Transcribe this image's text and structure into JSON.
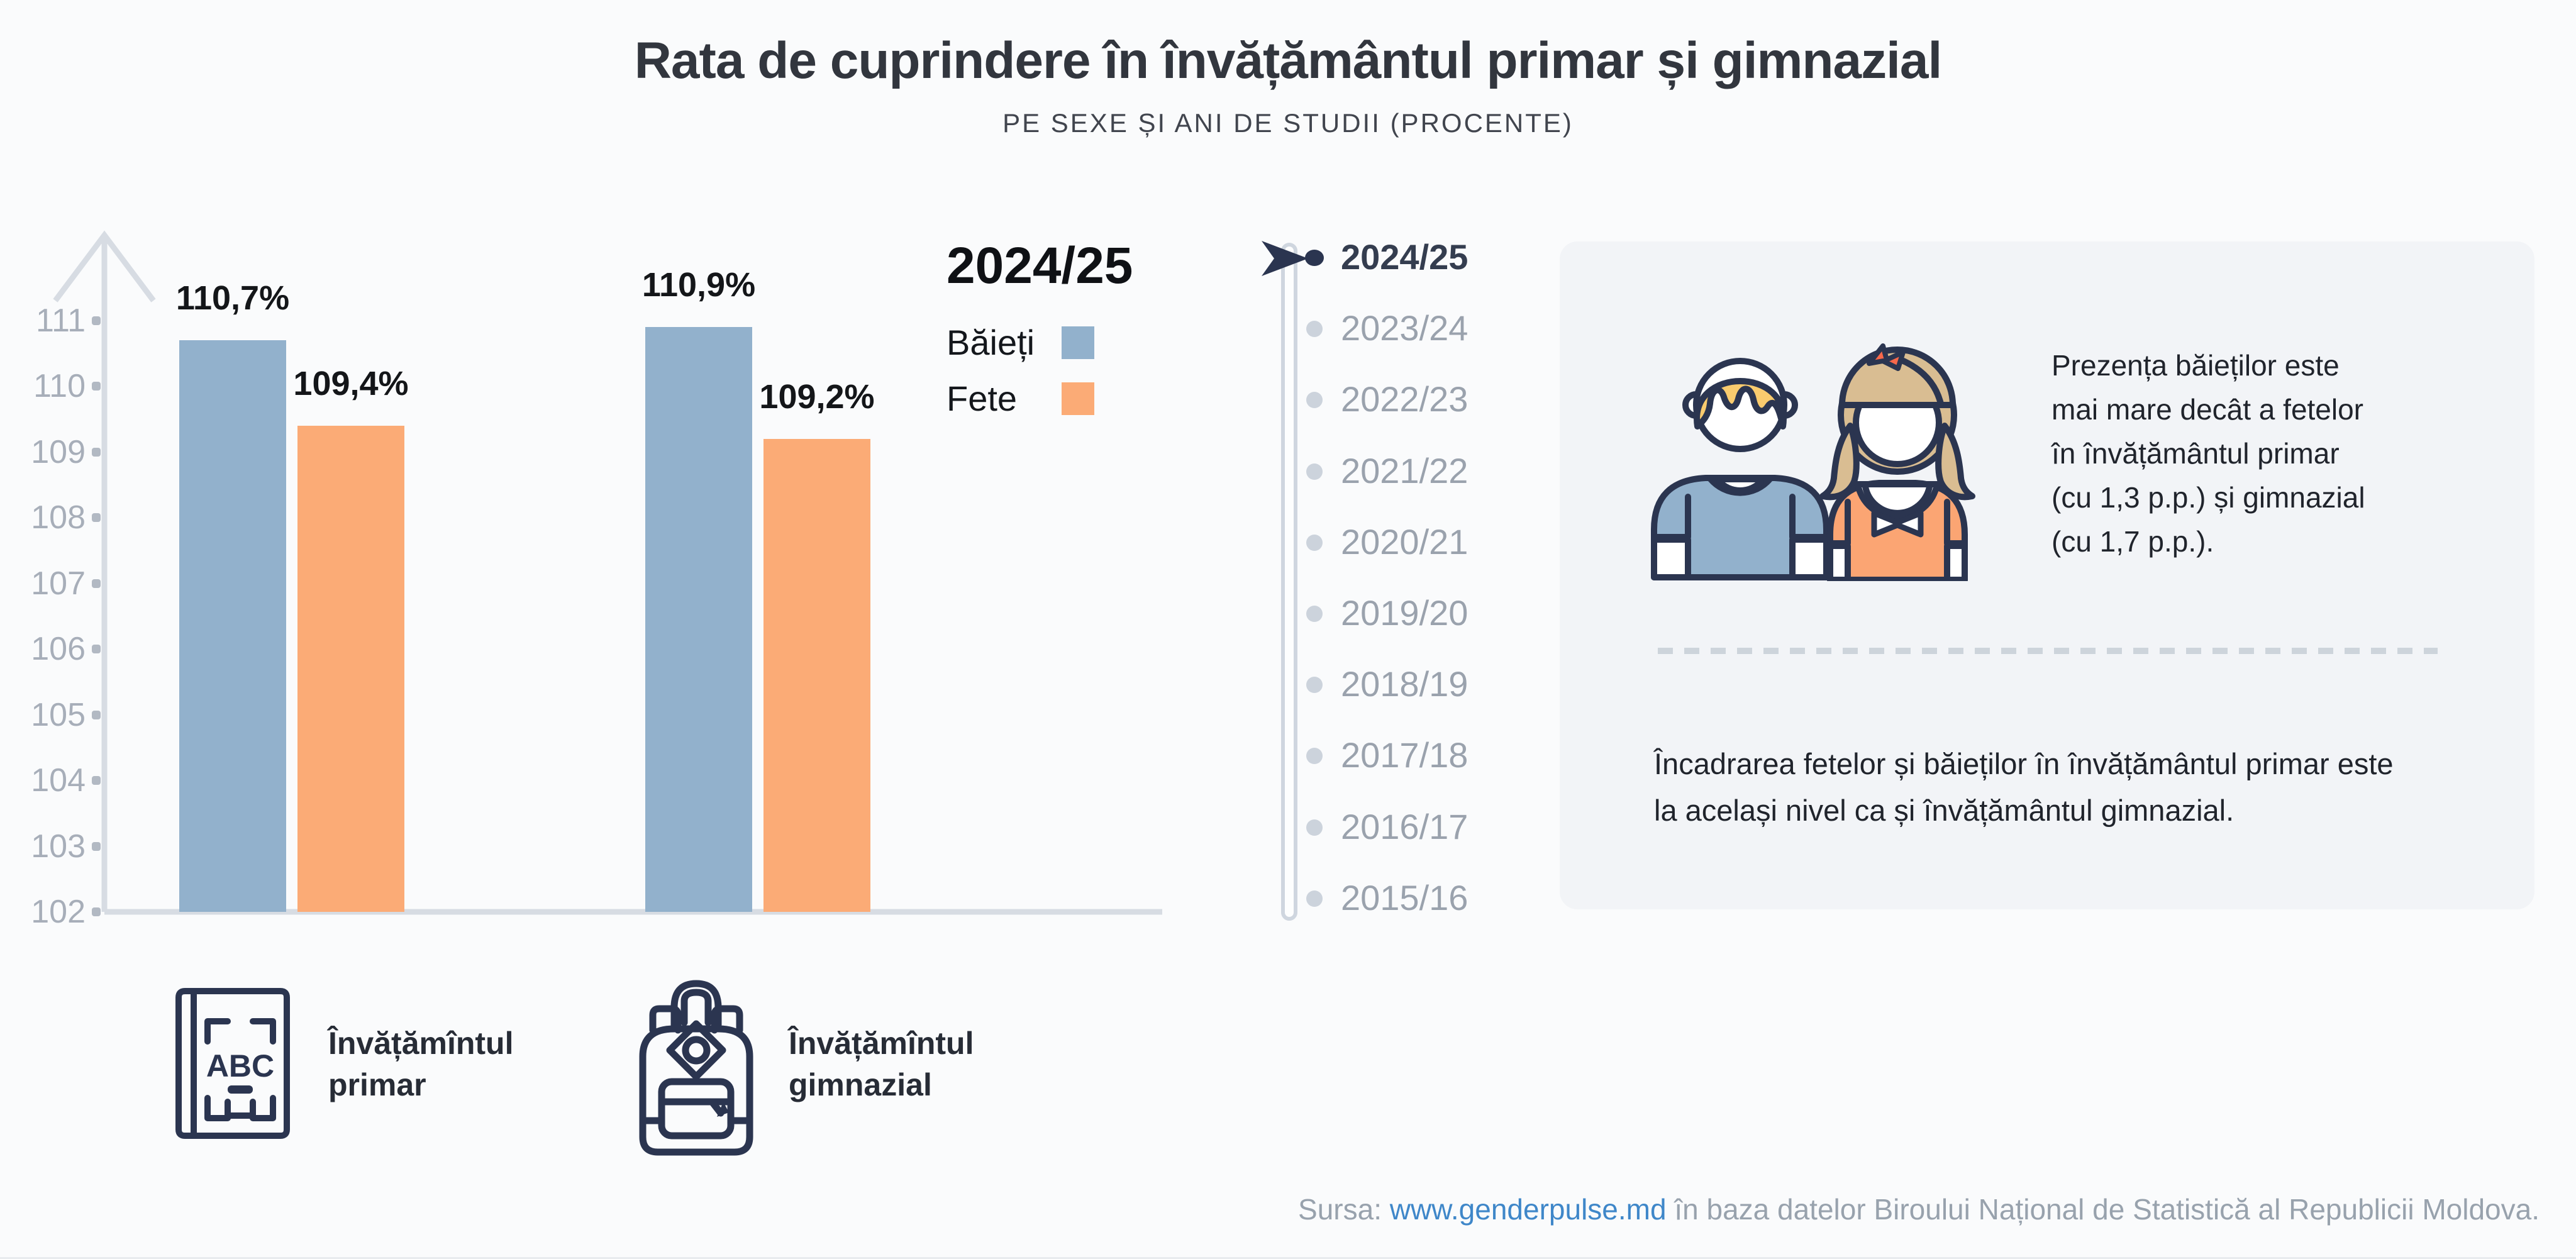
{
  "header": {
    "title": "Rata de cuprindere în învățământul primar și gimnazial",
    "subtitle": "PE SEXE ȘI ANI DE STUDII (PROCENTE)"
  },
  "chart_data": {
    "type": "bar",
    "title": "Rata de cuprindere în învățământul primar și gimnazial",
    "subtitle": "PE SEXE ȘI ANI DE STUDII (PROCENTE)",
    "xlabel": "",
    "ylabel": "",
    "ylim": [
      102,
      111
    ],
    "yticks": [
      111,
      110,
      109,
      108,
      107,
      106,
      105,
      104,
      103,
      102
    ],
    "grid": false,
    "legend_position": "top-right",
    "categories": [
      "Învățămîntul primar",
      "Învățămîntul gimnazial"
    ],
    "series": [
      {
        "name": "Băieți",
        "color": "#92b1cc",
        "values": [
          110.7,
          110.9
        ],
        "value_labels": [
          "110,7%",
          "110,9%"
        ]
      },
      {
        "name": "Fete",
        "color": "#fbab76",
        "values": [
          109.4,
          109.2
        ],
        "value_labels": [
          "109,4%",
          "109,2%"
        ]
      }
    ]
  },
  "legend": {
    "year": "2024/25",
    "items": [
      {
        "label": "Băieți",
        "color": "#92b1cc"
      },
      {
        "label": "Fete",
        "color": "#fbab76"
      }
    ]
  },
  "timeline": {
    "selected": "2024/25",
    "years": [
      "2024/25",
      "2023/24",
      "2022/23",
      "2021/22",
      "2020/21",
      "2019/20",
      "2018/19",
      "2017/18",
      "2016/17",
      "2015/16"
    ]
  },
  "infobox": {
    "paragraph1": "Prezența băieților este\nmai mare decât a fetelor\nîn învățământul primar\n(cu 1,3 p.p.) și gimnazial\n(cu 1,7 p.p.).",
    "paragraph2": "Încadrarea fetelor și băieților în învățământul primar este\nla același nivel ca și învățământul gimnazial."
  },
  "category_labels": {
    "primary": "Învățămîntul\nprimar",
    "gymnasium": "Învățămîntul\ngimnazial"
  },
  "source": {
    "prefix": "Sursa: ",
    "link": "www.genderpulse.md",
    "suffix": " în baza datelor Biroului Național de Statistică al Republicii Moldova."
  },
  "colors": {
    "boys": "#92b1cc",
    "girls": "#fbab76",
    "axis": "#d7dce3",
    "navy": "#2b3550",
    "selected": "#2b3550",
    "muted": "#9aa2ad",
    "box_bg": "#f2f4f7",
    "link": "#3f87c9"
  }
}
